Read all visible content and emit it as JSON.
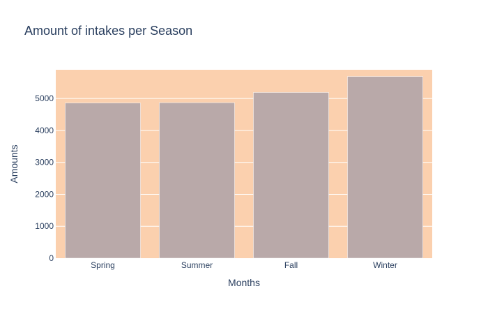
{
  "chart_data": {
    "type": "bar",
    "title": "Amount of intakes per Season",
    "xlabel": "Months",
    "ylabel": "Amounts",
    "categories": [
      "Spring",
      "Summer",
      "Fall",
      "Winter"
    ],
    "values": [
      4860,
      4870,
      5190,
      5690
    ],
    "ylim": [
      0,
      5900
    ],
    "yticks": [
      0,
      1000,
      2000,
      3000,
      4000,
      5000
    ],
    "grid": true,
    "colors": {
      "plot_bg": "#fbd0ae",
      "bar": "#b9a9a9",
      "bar_edge": "#ffffff",
      "grid": "#ffffff"
    }
  }
}
